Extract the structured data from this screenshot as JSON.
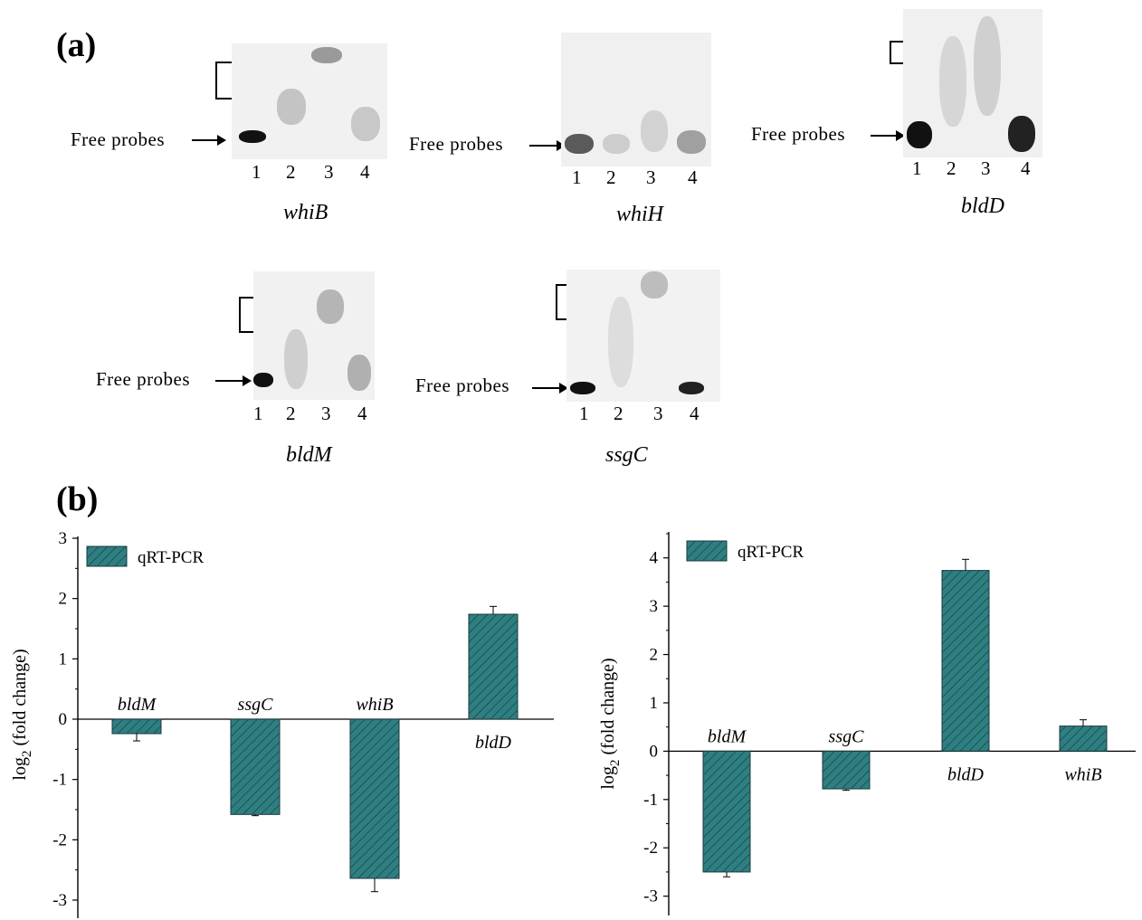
{
  "panels": {
    "a_label": "(a)",
    "b_label": "(b)"
  },
  "gels": [
    {
      "gene": "whiB",
      "free_label": "Free  probes",
      "lanes": [
        "1",
        "2",
        "3",
        "4"
      ]
    },
    {
      "gene": "whiH",
      "free_label": "Free  probes",
      "lanes": [
        "1",
        "2",
        "3",
        "4"
      ]
    },
    {
      "gene": "bldD",
      "free_label": "Free  probes",
      "lanes": [
        "1",
        "2",
        "3",
        "4"
      ]
    },
    {
      "gene": "bldM",
      "free_label": "Free  probes",
      "lanes": [
        "1",
        "2",
        "3",
        "4"
      ]
    },
    {
      "gene": "ssgC",
      "free_label": "Free  probes",
      "lanes": [
        "1",
        "2",
        "3",
        "4"
      ]
    }
  ],
  "colors": {
    "bar": "#2e7f82",
    "bar_hatch": "#1a3a3c"
  },
  "chart_data": [
    {
      "type": "bar",
      "legend": "qRT-PCR",
      "ylabel": "log2 (fold change)",
      "ylim": [
        -3.3,
        3
      ],
      "yticks": [
        "3",
        "2",
        "1",
        "0",
        "-1",
        "-2",
        "-3"
      ],
      "categories": [
        "bldM",
        "ssgC",
        "whiB",
        "bldD"
      ],
      "values": [
        -0.24,
        -1.58,
        -2.64,
        1.74
      ],
      "errors": [
        0.12,
        0.02,
        0.22,
        0.13
      ]
    },
    {
      "type": "bar",
      "legend": "qRT-PCR",
      "ylabel": "log2 (fold change)",
      "ylim": [
        -3.4,
        4.5
      ],
      "yticks": [
        "4",
        "3",
        "2",
        "1",
        "0",
        "-1",
        "-2",
        "-3"
      ],
      "categories": [
        "bldM",
        "ssgC",
        "bldD",
        "whiB"
      ],
      "values": [
        -2.5,
        -0.78,
        3.74,
        0.52
      ],
      "errors": [
        0.1,
        0.03,
        0.23,
        0.13
      ]
    }
  ]
}
